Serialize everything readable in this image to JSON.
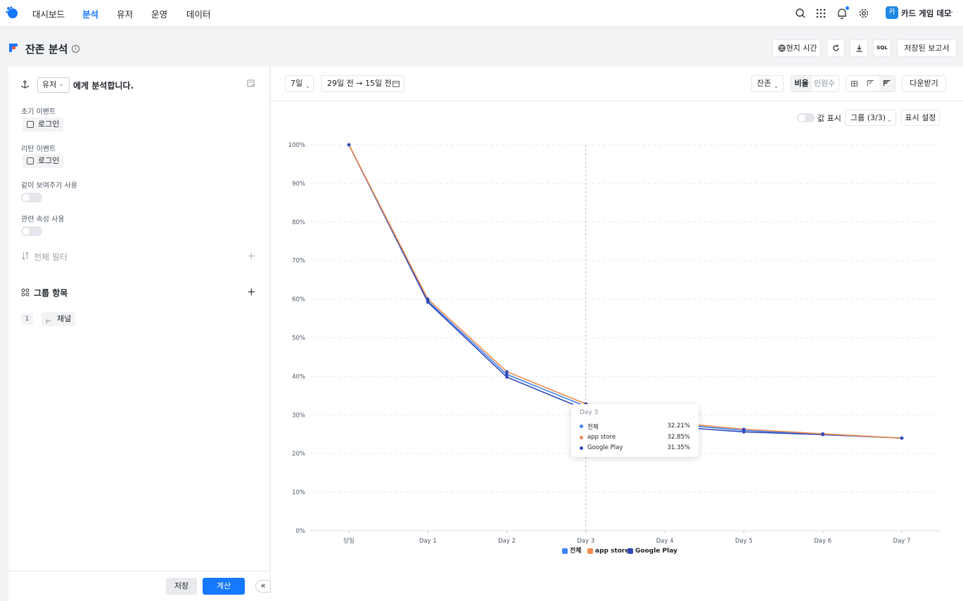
{
  "nav": {
    "items": [
      {
        "label": "대시보드",
        "active": false
      },
      {
        "label": "분석",
        "active": true
      },
      {
        "label": "유저",
        "active": false
      },
      {
        "label": "운영",
        "active": false
      },
      {
        "label": "데이터",
        "active": false
      }
    ],
    "icons": [
      "search-icon",
      "apps-grid-icon",
      "bell-icon",
      "settings-icon"
    ],
    "project_avatar": "카",
    "project_name": "카드 게임 데모",
    "accent": "#1677ff"
  },
  "header": {
    "title": "잔존 분석",
    "info": "i",
    "local_time": "현지 시간",
    "sql": "SQL",
    "saved_reports": "저장된 보고서"
  },
  "left": {
    "subject_value": "유저",
    "subject_suffix": "에게 분석합니다.",
    "initial_event_label": "초기 이벤트",
    "initial_event_value": "로그인",
    "return_event_label": "리턴 이벤트",
    "return_event_value": "로그인",
    "same_period_label": "같이 보여주기 사용",
    "related_attr_label": "관련 속성 사용",
    "global_filter_label": "전체 필터",
    "group_section_label": "그룹 항목",
    "group_index": "1",
    "group_value": "채널",
    "save_label": "저장",
    "calc_label": "계산",
    "collapse": "«"
  },
  "toolbar": {
    "period": "7일",
    "date_range": "29일 전 → 15일 전",
    "metric": "잔존",
    "ratio": "비율",
    "count": "인원수",
    "download": "다운받기",
    "show_values": "값 표시",
    "group": "그룹 (3/3)",
    "display_settings": "표시 설정"
  },
  "chart_data": {
    "type": "line",
    "categories": [
      "당일",
      "Day 1",
      "Day 2",
      "Day 3",
      "Day 4",
      "Day 5",
      "Day 6",
      "Day 7"
    ],
    "y_ticks": [
      "0%",
      "10%",
      "20%",
      "30%",
      "40%",
      "50%",
      "60%",
      "70%",
      "80%",
      "90%",
      "100%"
    ],
    "ylim": [
      0,
      100
    ],
    "grid": true,
    "legend_position": "bottom",
    "series": [
      {
        "name": "전체",
        "color": "#3b82f6",
        "values": [
          100,
          59.5,
          40.5,
          32.21,
          27.8,
          26.0,
          25.0,
          24.0
        ]
      },
      {
        "name": "app store",
        "color": "#f08a4b",
        "values": [
          100,
          60.0,
          41.2,
          32.85,
          28.2,
          26.3,
          25.1,
          24.0
        ]
      },
      {
        "name": "Google Play",
        "color": "#3048b8",
        "values": [
          100,
          59.2,
          39.8,
          31.35,
          27.1,
          25.6,
          24.9,
          24.0
        ]
      }
    ],
    "tooltip": {
      "title": "Day 3",
      "rows": [
        {
          "name": "전체",
          "value": "32.21%"
        },
        {
          "name": "app store",
          "value": "32.85%"
        },
        {
          "name": "Google Play",
          "value": "31.35%"
        }
      ]
    },
    "hover_category_index": 3
  }
}
